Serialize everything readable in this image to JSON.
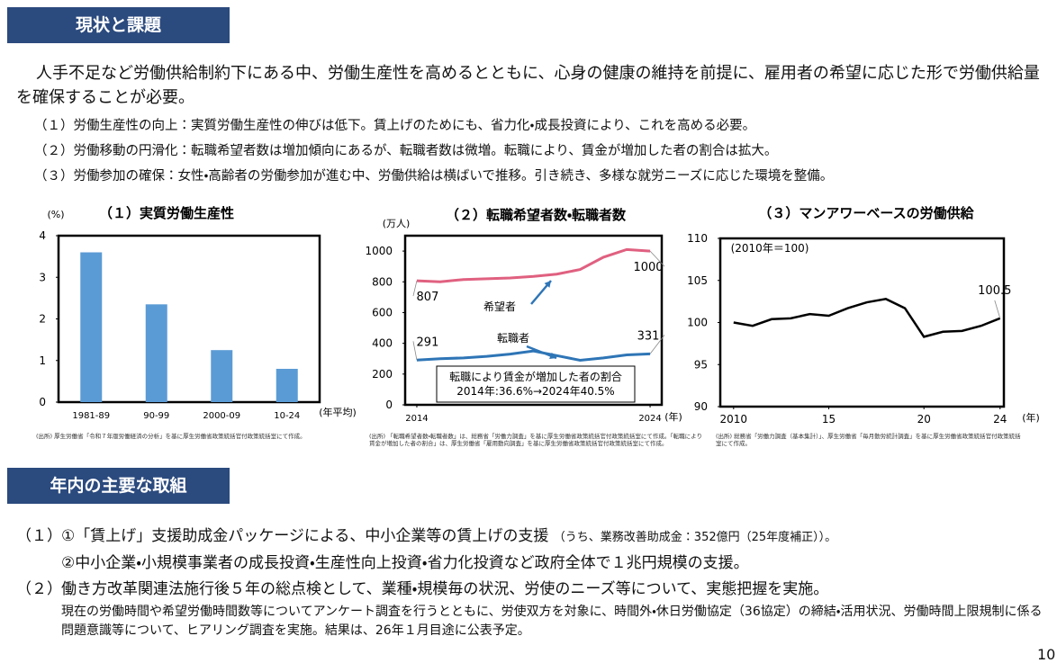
{
  "status": {
    "title": "現状と課題",
    "intro": "人手不足など労働供給制約下にある中、労働生産性を高めるとともに、心身の健康の維持を前提に、雇用者の希望に応じた形で労働供給量を確保することが必要。",
    "points": [
      "（１）労働生産性の向上：実質労働生産性の伸びは低下。賃上げのためにも、省力化・成長投資により、これを高める必要。",
      "（２）労働移動の円滑化：転職希望者数は増加傾向にあるが、転職者数は微増。転職により、賃金が増加した者の割合は拡大。",
      "（３）労働参加の確保：女性・高齢者の労働参加が進む中、労働供給は横ばいで推移。引き続き、多様な就労ニーズに応じた環境を整備。"
    ]
  },
  "chart_data": [
    {
      "type": "bar",
      "title": "（１）実質労働生産性",
      "ylabel": "(%)",
      "xlabel": "(年平均)",
      "categories": [
        "1981-89",
        "90-99",
        "2000-09",
        "10-24"
      ],
      "values": [
        3.6,
        2.35,
        1.25,
        0.8
      ],
      "color": "#5b9bd5",
      "ylim": [
        0,
        4
      ],
      "yticks": [
        0,
        1,
        2,
        3,
        4
      ],
      "source": "(出所) 厚生労働省「令和７年版労働経済の分析」を基に厚生労働省政策統括官付政策統括室にて作成。"
    },
    {
      "type": "line",
      "title": "（２）転職希望者数・転職者数",
      "ylabel": "(万人)",
      "xlabel": "(年)",
      "x": [
        2014,
        2015,
        2016,
        2017,
        2018,
        2019,
        2020,
        2021,
        2022,
        2023,
        2024
      ],
      "series": [
        {
          "name": "希望者",
          "color": "#e06080",
          "values": [
            807,
            800,
            815,
            820,
            825,
            835,
            850,
            880,
            960,
            1010,
            1000
          ]
        },
        {
          "name": "転職者",
          "color": "#2e75b6",
          "values": [
            291,
            300,
            305,
            315,
            330,
            350,
            320,
            290,
            305,
            325,
            331
          ]
        }
      ],
      "xlim": [
        2013.5,
        2024.5
      ],
      "xticks": [
        2014,
        2024
      ],
      "ylim": [
        0,
        1100
      ],
      "yticks": [
        0,
        200,
        400,
        600,
        800,
        1000
      ],
      "note": [
        "転職により賃金が増加した者の割合",
        "2014年:36.6%→2024年40.5%"
      ],
      "source": "(出所) 「転職希望者数・転職者数」は、総務省「労働力調査」を基に厚生労働省政策統括官付政策統括室にて作成。「転職により賃金が増加した者の割合」は、厚生労働省「雇用動向調査」を基に厚生労働省政策統括官付政策統括室にて作成。"
    },
    {
      "type": "line",
      "title": "（３）マンアワーベースの労働供給",
      "xlabel": "(年)",
      "x": [
        2010,
        2011,
        2012,
        2013,
        2014,
        2015,
        2016,
        2017,
        2018,
        2019,
        2020,
        2021,
        2022,
        2023,
        2024
      ],
      "series": [
        {
          "color": "#000000",
          "values": [
            100,
            99.6,
            100.4,
            100.5,
            101,
            100.8,
            101.7,
            102.4,
            102.8,
            101.7,
            98.3,
            98.9,
            99,
            99.6,
            100.5
          ]
        }
      ],
      "xlim": [
        2009.3,
        2024.2
      ],
      "xticks": [
        2010,
        {
          "value": 2015,
          "label": "15"
        },
        {
          "value": 2020,
          "label": "20"
        },
        {
          "value": 2024,
          "label": "24"
        }
      ],
      "ylim": [
        90,
        110
      ],
      "yticks": [
        90,
        95,
        100,
        105,
        110
      ],
      "note": [
        "(2010年＝100)"
      ],
      "source": "(出所) 総務省「労働力調査（基本集計）」、厚生労働省「毎月勤労統計調査」を基に厚生労働省政策統括官付政策統括室にて作成。"
    }
  ],
  "initiatives": {
    "title": "年内の主要な取組",
    "items": [
      {
        "number": "（１）",
        "text": "①「賃上げ」支援助成金パッケージによる、中小企業等の賃上げの支援",
        "note": "（うち、業務改善助成金：352億円（25年度補正））。"
      },
      {
        "text": "②中小企業・小規模事業者の成長投資・生産性向上投資・省力化投資など政府全体で１兆円規模の支援。"
      },
      {
        "number": "（２）",
        "text": "働き方改革関連法施行後５年の総点検として、業種・規模毎の状況、労使のニーズ等について、実態把握を実施。",
        "detail": "現在の労働時間や希望労働時間数等についてアンケート調査を行うとともに、労使双方を対象に、時間外・休日労働協定（36協定）の締結・活用状況、労働時間上限規制に係る問題意識等について、ヒアリング調査を実施。結果は、26年１月目途に公表予定。"
      }
    ]
  },
  "page_number": "10"
}
